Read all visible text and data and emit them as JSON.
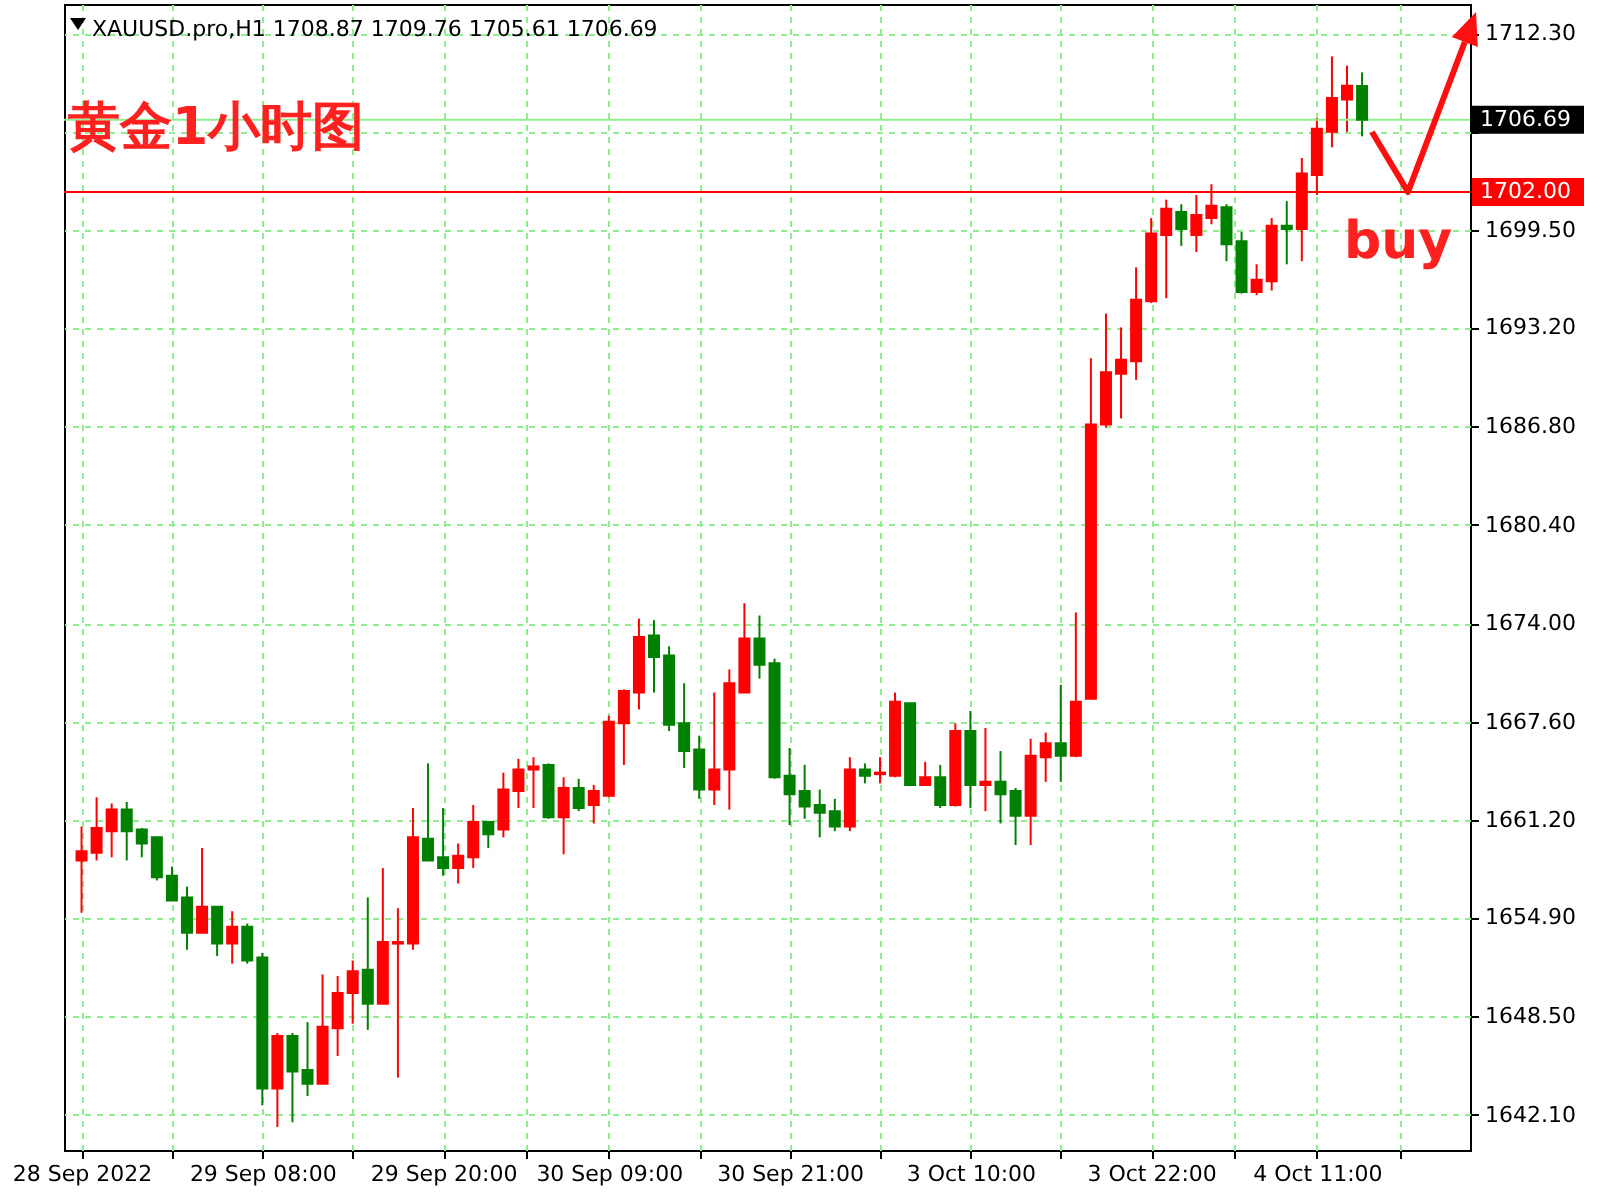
{
  "chart_data": {
    "type": "candlestick",
    "title": "XAUUSD.pro,H1 1708.87 1709.76 1705.61 1706.69",
    "annotations": [
      "黄金1小时图",
      {
        "text": "buy",
        "y": 1702.0
      }
    ],
    "categories": [
      "28 Sep 2022",
      null,
      null,
      null,
      null,
      null,
      null,
      null,
      null,
      null,
      null,
      null,
      "29 Sep 08:00",
      null,
      null,
      null,
      null,
      null,
      null,
      null,
      null,
      null,
      null,
      null,
      "29 Sep 20:00",
      null,
      null,
      null,
      null,
      null,
      null,
      null,
      null,
      null,
      null,
      "30 Sep 09:00",
      null,
      null,
      null,
      null,
      null,
      null,
      null,
      null,
      null,
      null,
      null,
      "30 Sep 21:00",
      null,
      null,
      null,
      null,
      null,
      null,
      null,
      null,
      null,
      null,
      null,
      "3 Oct 10:00",
      null,
      null,
      null,
      null,
      null,
      null,
      null,
      null,
      null,
      null,
      null,
      "3 Oct 22:00",
      null,
      null,
      null,
      null,
      null,
      null,
      null,
      null,
      null,
      null,
      "4 Oct 11:00",
      null,
      null,
      null
    ],
    "ohlc": [
      [
        1658.6,
        1660.8,
        1655.2,
        1659.2
      ],
      [
        1659.1,
        1662.7,
        1658.6,
        1660.7
      ],
      [
        1660.5,
        1662.3,
        1658.8,
        1661.9
      ],
      [
        1661.9,
        1662.4,
        1658.6,
        1660.5
      ],
      [
        1660.6,
        1660.7,
        1658.8,
        1659.7
      ],
      [
        1660.1,
        1660.1,
        1657.3,
        1657.5
      ],
      [
        1657.6,
        1658.2,
        1656.0,
        1656.0
      ],
      [
        1656.2,
        1656.9,
        1652.8,
        1653.9
      ],
      [
        1653.9,
        1659.4,
        1653.9,
        1655.6
      ],
      [
        1655.6,
        1655.6,
        1652.4,
        1653.2
      ],
      [
        1653.2,
        1655.3,
        1651.9,
        1654.3
      ],
      [
        1654.3,
        1654.5,
        1651.9,
        1652.1
      ],
      [
        1652.3,
        1652.6,
        1642.7,
        1643.8
      ],
      [
        1643.8,
        1647.4,
        1641.3,
        1647.2
      ],
      [
        1647.2,
        1647.4,
        1641.6,
        1644.9
      ],
      [
        1645.0,
        1648.1,
        1643.3,
        1644.1
      ],
      [
        1644.1,
        1651.2,
        1644.1,
        1647.8
      ],
      [
        1647.7,
        1651.1,
        1645.9,
        1650.0
      ],
      [
        1650.0,
        1652.1,
        1648.0,
        1651.4
      ],
      [
        1651.5,
        1656.2,
        1647.6,
        1649.3
      ],
      [
        1649.3,
        1658.1,
        1649.3,
        1653.3
      ],
      [
        1653.2,
        1655.5,
        1644.5,
        1653.3
      ],
      [
        1653.2,
        1662.0,
        1652.8,
        1660.1
      ],
      [
        1660.0,
        1664.9,
        1658.6,
        1658.6
      ],
      [
        1658.8,
        1662.0,
        1657.6,
        1658.1
      ],
      [
        1658.1,
        1659.7,
        1657.1,
        1658.9
      ],
      [
        1658.8,
        1662.2,
        1658.1,
        1661.1
      ],
      [
        1661.1,
        1661.1,
        1659.4,
        1660.3
      ],
      [
        1660.6,
        1664.3,
        1660.1,
        1663.2
      ],
      [
        1663.1,
        1665.2,
        1662.0,
        1664.5
      ],
      [
        1664.5,
        1665.3,
        1662.0,
        1664.7
      ],
      [
        1664.8,
        1664.9,
        1661.3,
        1661.4
      ],
      [
        1661.4,
        1664.0,
        1659.0,
        1663.3
      ],
      [
        1663.3,
        1663.9,
        1661.8,
        1662.0
      ],
      [
        1662.2,
        1663.5,
        1661.0,
        1663.1
      ],
      [
        1662.8,
        1668.0,
        1662.7,
        1667.6
      ],
      [
        1667.5,
        1669.7,
        1664.8,
        1669.6
      ],
      [
        1669.5,
        1674.3,
        1668.4,
        1673.1
      ],
      [
        1673.2,
        1674.2,
        1669.5,
        1671.8
      ],
      [
        1671.9,
        1672.5,
        1667.0,
        1667.4
      ],
      [
        1667.5,
        1670.1,
        1664.6,
        1665.7
      ],
      [
        1665.8,
        1666.7,
        1662.6,
        1663.2
      ],
      [
        1663.2,
        1669.5,
        1662.2,
        1664.5
      ],
      [
        1664.5,
        1671.0,
        1661.9,
        1670.1
      ],
      [
        1669.5,
        1675.3,
        1669.5,
        1673.0
      ],
      [
        1673.0,
        1674.5,
        1670.4,
        1671.3
      ],
      [
        1671.4,
        1671.7,
        1663.9,
        1664.0
      ],
      [
        1664.1,
        1665.9,
        1660.9,
        1662.9
      ],
      [
        1663.1,
        1664.8,
        1661.3,
        1662.1
      ],
      [
        1662.2,
        1663.2,
        1660.1,
        1661.7
      ],
      [
        1661.8,
        1662.6,
        1660.5,
        1660.8
      ],
      [
        1660.8,
        1665.3,
        1660.5,
        1664.5
      ],
      [
        1664.5,
        1664.9,
        1663.6,
        1664.1
      ],
      [
        1664.2,
        1665.3,
        1663.6,
        1664.3
      ],
      [
        1664.1,
        1669.5,
        1664.0,
        1668.9
      ],
      [
        1668.8,
        1668.8,
        1663.5,
        1663.5
      ],
      [
        1663.5,
        1665.0,
        1663.5,
        1664.0
      ],
      [
        1664.0,
        1664.8,
        1662.0,
        1662.2
      ],
      [
        1662.2,
        1667.5,
        1662.1,
        1667.0
      ],
      [
        1667.0,
        1668.3,
        1662.0,
        1663.5
      ],
      [
        1663.5,
        1667.2,
        1661.8,
        1663.7
      ],
      [
        1663.7,
        1665.7,
        1661.0,
        1662.9
      ],
      [
        1663.1,
        1663.3,
        1659.6,
        1661.5
      ],
      [
        1661.5,
        1666.5,
        1659.6,
        1665.4
      ],
      [
        1665.3,
        1666.9,
        1663.7,
        1666.2
      ],
      [
        1666.2,
        1670.0,
        1663.7,
        1665.4
      ],
      [
        1665.4,
        1674.7,
        1665.3,
        1668.9
      ],
      [
        1669.1,
        1691.2,
        1669.1,
        1686.9
      ],
      [
        1686.9,
        1694.1,
        1686.7,
        1690.3
      ],
      [
        1690.2,
        1693.2,
        1687.3,
        1691.1
      ],
      [
        1691.0,
        1697.1,
        1689.8,
        1695.0
      ],
      [
        1694.9,
        1700.3,
        1694.8,
        1699.3
      ],
      [
        1699.2,
        1701.5,
        1695.1,
        1700.9
      ],
      [
        1700.7,
        1701.2,
        1698.5,
        1699.6
      ],
      [
        1699.2,
        1701.8,
        1698.1,
        1700.5
      ],
      [
        1700.3,
        1702.5,
        1699.9,
        1701.1
      ],
      [
        1701.0,
        1701.2,
        1697.5,
        1698.6
      ],
      [
        1698.8,
        1699.4,
        1695.4,
        1695.5
      ],
      [
        1695.5,
        1697.3,
        1695.3,
        1696.3
      ],
      [
        1696.2,
        1700.3,
        1695.6,
        1699.8
      ],
      [
        1699.8,
        1701.4,
        1697.3,
        1699.6
      ],
      [
        1699.6,
        1704.2,
        1697.5,
        1703.2
      ],
      [
        1703.1,
        1706.8,
        1701.8,
        1706.1
      ],
      [
        1705.9,
        1710.8,
        1704.9,
        1708.1
      ],
      [
        1708.0,
        1710.2,
        1705.9,
        1708.9
      ],
      [
        1708.87,
        1709.76,
        1705.61,
        1706.69
      ]
    ],
    "colors": [
      "#ff0000",
      "#ff0000",
      "#ff0000",
      "#008000",
      "#008000",
      "#008000",
      "#008000",
      "#008000",
      "#ff0000",
      "#008000",
      "#ff0000",
      "#008000",
      "#008000",
      "#ff0000",
      "#008000",
      "#008000",
      "#ff0000",
      "#ff0000",
      "#ff0000",
      "#008000",
      "#ff0000",
      "#ff0000",
      "#ff0000",
      "#008000",
      "#008000",
      "#ff0000",
      "#ff0000",
      "#008000",
      "#ff0000",
      "#ff0000",
      "#ff0000",
      "#008000",
      "#ff0000",
      "#008000",
      "#ff0000",
      "#ff0000",
      "#ff0000",
      "#ff0000",
      "#008000",
      "#008000",
      "#008000",
      "#008000",
      "#ff0000",
      "#ff0000",
      "#ff0000",
      "#008000",
      "#008000",
      "#008000",
      "#008000",
      "#008000",
      "#008000",
      "#ff0000",
      "#008000",
      "#ff0000",
      "#ff0000",
      "#008000",
      "#ff0000",
      "#008000",
      "#ff0000",
      "#008000",
      "#ff0000",
      "#008000",
      "#008000",
      "#ff0000",
      "#ff0000",
      "#008000",
      "#ff0000",
      "#ff0000",
      "#ff0000",
      "#ff0000",
      "#ff0000",
      "#ff0000",
      "#ff0000",
      "#008000",
      "#ff0000",
      "#ff0000",
      "#008000",
      "#008000",
      "#ff0000",
      "#ff0000",
      "#008000",
      "#ff0000",
      "#ff0000",
      "#ff0000",
      "#ff0000",
      "#008000"
    ],
    "ylim": [
      1639.8,
      1714.2
    ],
    "yticks": [
      {
        "value": 1642.1,
        "label": "1642.10"
      },
      {
        "value": 1648.5,
        "label": "1648.50"
      },
      {
        "value": 1654.9,
        "label": "1654.90"
      },
      {
        "value": 1661.2,
        "label": "1661.20"
      },
      {
        "value": 1667.6,
        "label": "1667.60"
      },
      {
        "value": 1674.0,
        "label": "1674.00"
      },
      {
        "value": 1680.4,
        "label": "1680.40"
      },
      {
        "value": 1686.8,
        "label": "1686.80"
      },
      {
        "value": 1693.2,
        "label": "1693.20"
      },
      {
        "value": 1699.5,
        "label": "1699.50"
      },
      {
        "value": 1705.9,
        "label": null
      },
      {
        "value": 1712.3,
        "label": "1712.30"
      }
    ],
    "ref_lines": [
      {
        "axis": "y",
        "value": 1702.0,
        "label": "1702.00",
        "color": "#ff0000"
      },
      {
        "axis": "y",
        "value": 1706.69,
        "label": "1706.69",
        "color": "#90ee90"
      }
    ],
    "grid": true
  }
}
